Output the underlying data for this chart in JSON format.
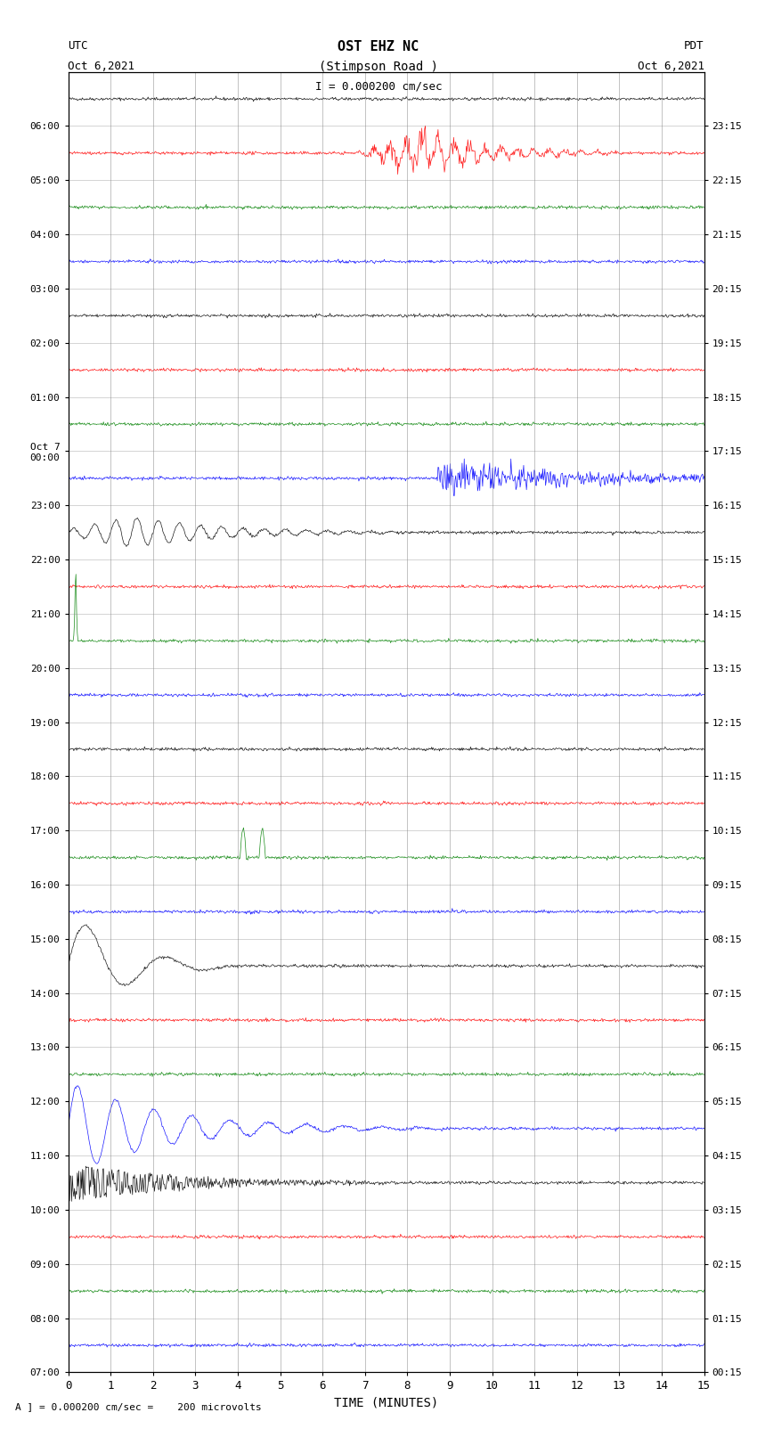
{
  "title_line1": "OST EHZ NC",
  "title_line2": "(Stimpson Road )",
  "title_line3": "I = 0.000200 cm/sec",
  "left_label_top": "UTC",
  "left_label_date": "Oct 6,2021",
  "right_label_top": "PDT",
  "right_label_date": "Oct 6,2021",
  "bottom_label": "TIME (MINUTES)",
  "bottom_note": "A ] = 0.000200 cm/sec =    200 microvolts",
  "utc_times": [
    "07:00",
    "08:00",
    "09:00",
    "10:00",
    "11:00",
    "12:00",
    "13:00",
    "14:00",
    "15:00",
    "16:00",
    "17:00",
    "18:00",
    "19:00",
    "20:00",
    "21:00",
    "22:00",
    "23:00",
    "Oct 7\n00:00",
    "01:00",
    "02:00",
    "03:00",
    "04:00",
    "05:00",
    "06:00"
  ],
  "pdt_times": [
    "00:15",
    "01:15",
    "02:15",
    "03:15",
    "04:15",
    "05:15",
    "06:15",
    "07:15",
    "08:15",
    "09:15",
    "10:15",
    "11:15",
    "12:15",
    "13:15",
    "14:15",
    "15:15",
    "16:15",
    "17:15",
    "18:15",
    "19:15",
    "20:15",
    "21:15",
    "22:15",
    "23:15"
  ],
  "n_rows": 24,
  "n_cols": 900,
  "colors_cycle": [
    "black",
    "red",
    "green",
    "blue"
  ],
  "bg_color": "#ffffff",
  "trace_amplitude": 0.35,
  "x_min": 0,
  "x_max": 15,
  "x_ticks": [
    0,
    1,
    2,
    3,
    4,
    5,
    6,
    7,
    8,
    9,
    10,
    11,
    12,
    13,
    14,
    15
  ]
}
